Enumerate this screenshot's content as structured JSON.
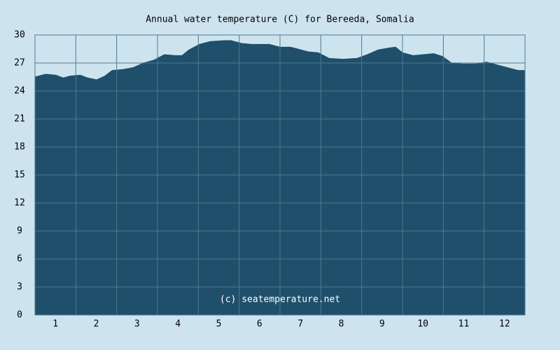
{
  "chart_data": {
    "type": "area",
    "title": "Annual water temperature (C) for Bereeda, Somalia",
    "annotation": "(c) seatemperature.net",
    "x": [
      0.5,
      0.76,
      1.01,
      1.19,
      1.36,
      1.61,
      1.79,
      2.01,
      2.21,
      2.39,
      2.64,
      2.9,
      3.16,
      3.41,
      3.67,
      3.93,
      4.1,
      4.27,
      4.53,
      4.79,
      5.13,
      5.3,
      5.56,
      5.81,
      6.07,
      6.24,
      6.5,
      6.76,
      6.93,
      7.19,
      7.44,
      7.7,
      8.04,
      8.39,
      8.64,
      8.9,
      9.16,
      9.33,
      9.5,
      9.76,
      10.01,
      10.27,
      10.48,
      10.7,
      10.96,
      11.3,
      11.56,
      11.81,
      12.07,
      12.33,
      12.5
    ],
    "values": [
      25.5,
      25.8,
      25.7,
      25.4,
      25.6,
      25.7,
      25.4,
      25.2,
      25.6,
      26.2,
      26.3,
      26.5,
      27.0,
      27.3,
      27.9,
      27.8,
      27.8,
      28.4,
      29.0,
      29.3,
      29.4,
      29.4,
      29.1,
      29.0,
      29.0,
      29.0,
      28.7,
      28.7,
      28.5,
      28.2,
      28.1,
      27.5,
      27.4,
      27.5,
      27.9,
      28.4,
      28.6,
      28.7,
      28.1,
      27.8,
      27.9,
      28.0,
      27.7,
      27.0,
      26.9,
      26.9,
      27.1,
      26.8,
      26.5,
      26.2,
      26.2
    ],
    "color": "#1f4f6b",
    "xlim": [
      0.5,
      12.5
    ],
    "xticks": [
      1,
      2,
      3,
      4,
      5,
      6,
      7,
      8,
      9,
      10,
      11,
      12
    ],
    "ylim": [
      0,
      30
    ],
    "yticks": [
      0,
      3,
      6,
      9,
      12,
      15,
      18,
      21,
      24,
      27,
      30
    ],
    "grid": true
  }
}
